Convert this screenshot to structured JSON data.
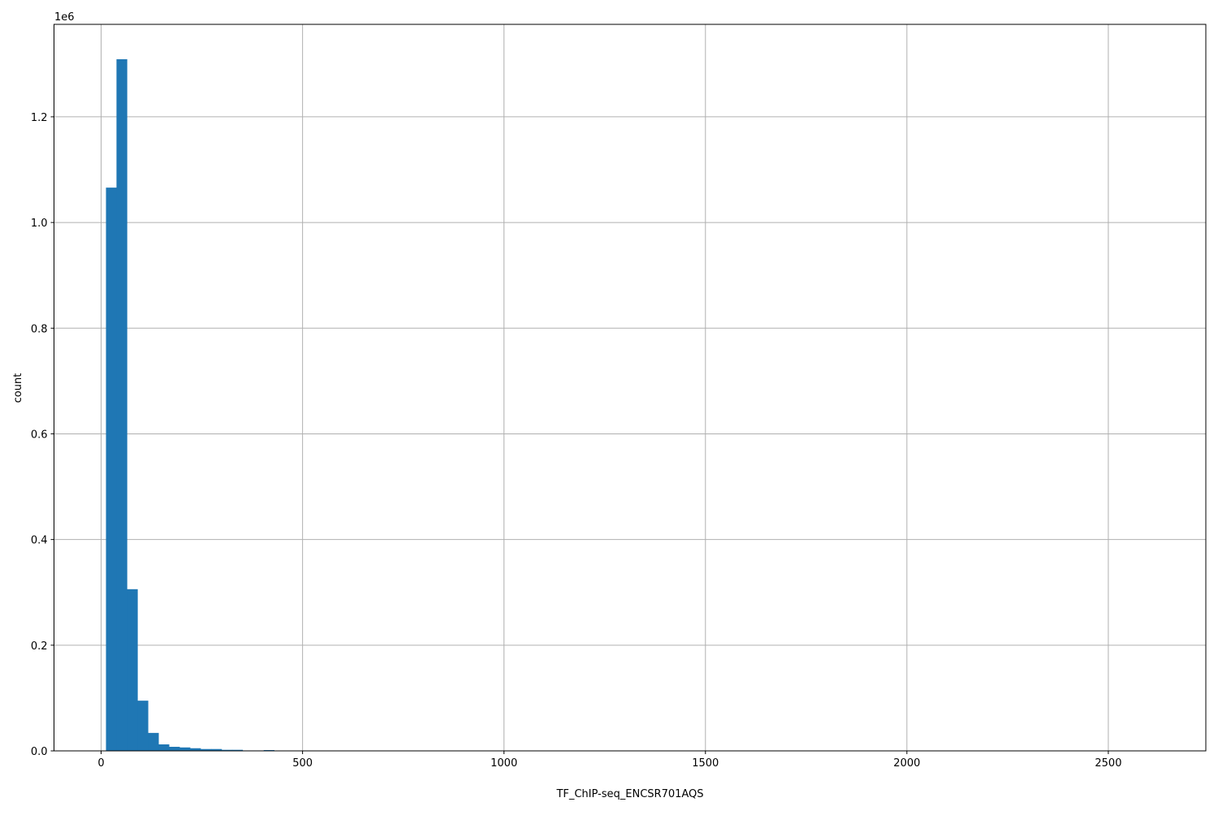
{
  "chart_data": {
    "type": "bar",
    "subtype": "histogram",
    "title": "",
    "xlabel": "TF_ChIP-seq_ENCSR701AQS",
    "ylabel": "count",
    "y_offset_label": "1e6",
    "xlim": [
      -117,
      2742
    ],
    "ylim": [
      0,
      1375000
    ],
    "grid": true,
    "bar_color": "#1f77b4",
    "grid_color": "#b0b0b0",
    "bin_start": 12,
    "bin_width": 26.1,
    "values": [
      1066000,
      1309000,
      306000,
      95000,
      34000,
      12300,
      7700,
      6500,
      5000,
      3500,
      3500,
      2000,
      2000,
      800,
      800,
      1500
    ],
    "x_ticks": [
      0,
      500,
      1000,
      1500,
      2000,
      2500
    ],
    "x_tick_labels": [
      "0",
      "500",
      "1000",
      "1500",
      "2000",
      "2500"
    ],
    "y_ticks": [
      0,
      200000,
      400000,
      600000,
      800000,
      1000000,
      1200000
    ],
    "y_tick_labels": [
      "0.0",
      "0.2",
      "0.4",
      "0.6",
      "0.8",
      "1.0",
      "1.2"
    ]
  }
}
